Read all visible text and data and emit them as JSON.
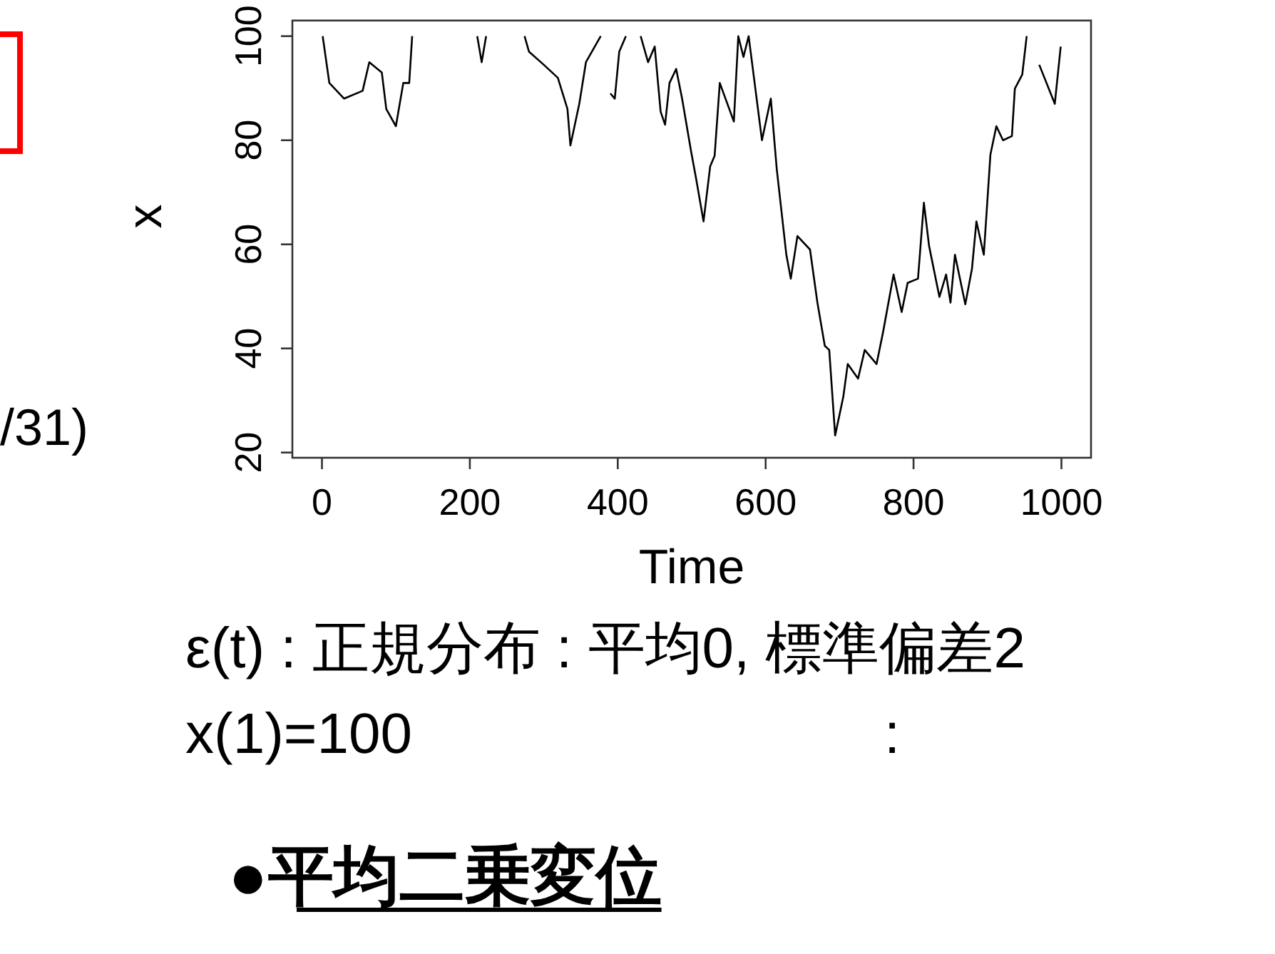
{
  "chart_data": {
    "type": "line",
    "xlabel": "Time",
    "ylabel": "x",
    "xlim": [
      -40,
      1040
    ],
    "ylim": [
      19,
      103
    ],
    "xticks": [
      0,
      200,
      400,
      600,
      800,
      1000
    ],
    "yticks": [
      20,
      40,
      60,
      80,
      100
    ],
    "marker": "none",
    "line_style": "solid",
    "grid": false,
    "series": [
      {
        "color": "#000000",
        "x": [
          1,
          10,
          30,
          55,
          64,
          81,
          87,
          100,
          110,
          118,
          122
        ],
        "values": [
          100,
          91,
          88,
          89.5,
          95,
          93,
          86,
          82.7,
          91,
          91,
          100
        ]
      },
      {
        "color": "#000000",
        "x": [
          210,
          216,
          222
        ],
        "values": [
          100,
          95,
          100
        ]
      },
      {
        "color": "#000000",
        "x": [
          274,
          280,
          300,
          319,
          332,
          336,
          348,
          357,
          377
        ],
        "values": [
          100,
          97,
          94.5,
          92,
          86,
          79,
          87,
          95,
          100
        ]
      },
      {
        "color": "#000000",
        "x": [
          390,
          396,
          402,
          411
        ],
        "values": [
          89,
          88,
          97,
          100
        ]
      },
      {
        "color": "#000000",
        "x": [
          431,
          441,
          450,
          458,
          464,
          470,
          479,
          487,
          499,
          506,
          516,
          525,
          531,
          538,
          557,
          563,
          570,
          577,
          595,
          607,
          615,
          628,
          634,
          643,
          660,
          670,
          680,
          686,
          694,
          705,
          711,
          725,
          734,
          750,
          759,
          773,
          784,
          792,
          806,
          814,
          821,
          835,
          844,
          850,
          856,
          870,
          879,
          885,
          895,
          904,
          912,
          921,
          933,
          937,
          947,
          953
        ],
        "values": [
          100,
          95,
          98,
          85.5,
          83,
          91,
          93.7,
          88,
          78,
          72.6,
          64.4,
          75,
          77,
          91,
          83.6,
          100,
          96,
          100,
          80,
          88,
          74.5,
          58,
          53.4,
          61.6,
          59,
          48.8,
          40.5,
          39.7,
          23.3,
          30.7,
          37,
          34.2,
          39.7,
          37,
          43.3,
          54.2,
          47,
          52.6,
          53.4,
          68,
          59.7,
          49.9,
          54.2,
          48.8,
          58,
          48.5,
          55.3,
          64.4,
          58,
          77.3,
          82.7,
          80,
          80.8,
          89.9,
          92.6,
          100
        ]
      },
      {
        "color": "#000000",
        "x": [
          970,
          991,
          999
        ],
        "values": [
          94.5,
          87,
          98
        ]
      }
    ],
    "annotations": [
      "/31)",
      "ε(t) : 正規分布 : 平均0, 標準偏差2",
      "x(1)=100",
      ":",
      "●平均二乗変位"
    ]
  }
}
